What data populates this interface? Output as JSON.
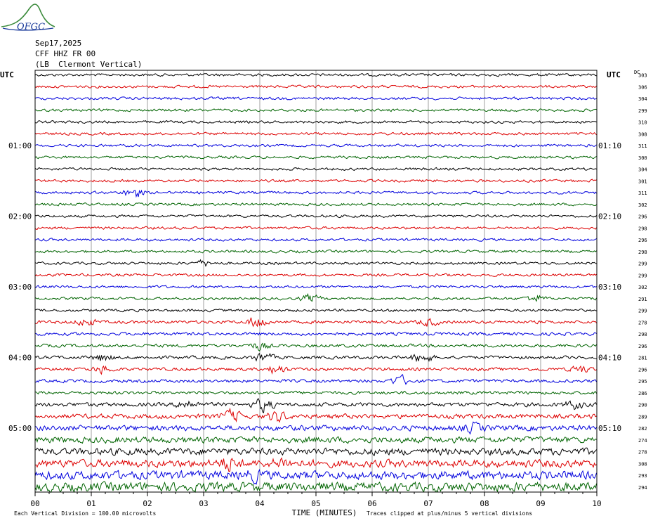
{
  "header": {
    "logo_text": "OFGC",
    "date": "Sep17,2025",
    "station": "CFF HHZ FR 00",
    "location": "(LB  Clermont Vertical)"
  },
  "axes": {
    "left_title": "UTC",
    "right_title": "UTC",
    "dc_title": "DC",
    "left_hours": [
      "01:00",
      "02:00",
      "03:00",
      "04:00",
      "05:00"
    ],
    "right_hours": [
      "01:10",
      "02:10",
      "03:10",
      "04:10",
      "05:10"
    ],
    "x_ticks": [
      "00",
      "01",
      "02",
      "03",
      "04",
      "05",
      "06",
      "07",
      "08",
      "09",
      "10"
    ],
    "x_title": "TIME (MINUTES)"
  },
  "footer": {
    "scale_note": "Each Vertical Division =  100.00 microvolts",
    "clip_note": "Traces clipped at plus/minus 5 vertical divisions"
  },
  "chart_data": {
    "type": "line",
    "title": "",
    "xlabel": "TIME (MINUTES)",
    "xlim": [
      0,
      10
    ],
    "trace_colors": [
      "#000000",
      "#dd0000",
      "#0000dd",
      "#006400"
    ],
    "dc_offsets": [
      303,
      306,
      304,
      299,
      310,
      308,
      311,
      300,
      304,
      301,
      311,
      302,
      296,
      298,
      296,
      298,
      299,
      299,
      302,
      291,
      299,
      278,
      298,
      296,
      281,
      296,
      295,
      286,
      290,
      289,
      282,
      274,
      278,
      308,
      293,
      294
    ],
    "events": [
      {
        "trace": 10,
        "minute": 1.75,
        "amp": 3
      },
      {
        "trace": 16,
        "minute": 3.0,
        "amp": 1.5
      },
      {
        "trace": 19,
        "minute": 4.9,
        "amp": 2
      },
      {
        "trace": 19,
        "minute": 8.9,
        "amp": 2
      },
      {
        "trace": 21,
        "minute": 0.9,
        "amp": 2
      },
      {
        "trace": 21,
        "minute": 3.95,
        "amp": 3.5
      },
      {
        "trace": 21,
        "minute": 7.0,
        "amp": 2
      },
      {
        "trace": 23,
        "minute": 4.0,
        "amp": 2
      },
      {
        "trace": 24,
        "minute": 1.2,
        "amp": 2
      },
      {
        "trace": 24,
        "minute": 4.05,
        "amp": 2.5
      },
      {
        "trace": 24,
        "minute": 6.9,
        "amp": 3
      },
      {
        "trace": 25,
        "minute": 1.2,
        "amp": 2
      },
      {
        "trace": 25,
        "minute": 4.3,
        "amp": 2.5
      },
      {
        "trace": 25,
        "minute": 9.7,
        "amp": 2
      },
      {
        "trace": 26,
        "minute": 6.5,
        "amp": 2.5
      },
      {
        "trace": 28,
        "minute": 2.7,
        "amp": 2.5
      },
      {
        "trace": 28,
        "minute": 4.05,
        "amp": 3.5
      },
      {
        "trace": 28,
        "minute": 9.6,
        "amp": 2
      },
      {
        "trace": 29,
        "minute": 3.5,
        "amp": 3
      },
      {
        "trace": 29,
        "minute": 4.3,
        "amp": 2.5
      },
      {
        "trace": 30,
        "minute": 7.8,
        "amp": 2
      },
      {
        "trace": 33,
        "minute": 3.45,
        "amp": 3
      },
      {
        "trace": 33,
        "minute": 4.4,
        "amp": 2
      },
      {
        "trace": 34,
        "minute": 3.9,
        "amp": 2
      }
    ]
  }
}
